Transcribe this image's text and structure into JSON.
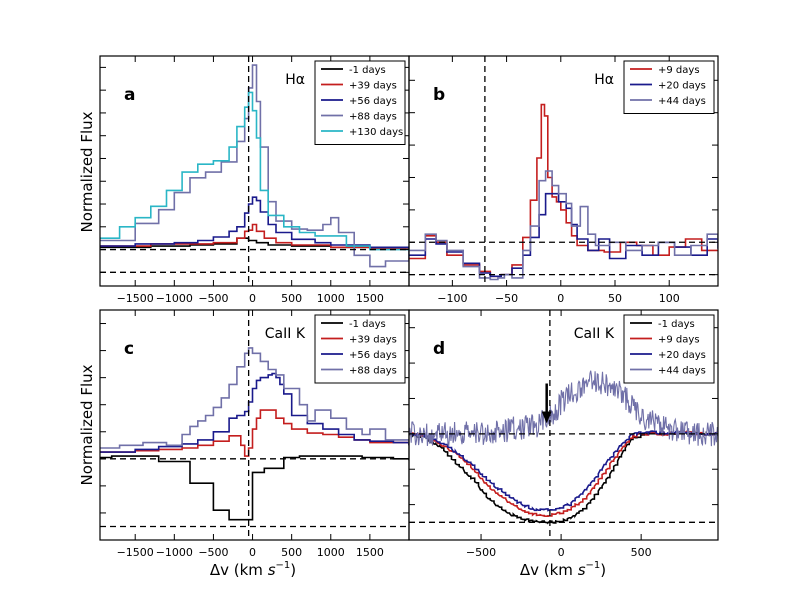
{
  "figure": {
    "ylabel": "Normalized Flux",
    "xlabel_main": "Δv (km ",
    "xlabel_unit": "s",
    "xlabel_exp": "−1",
    "xlabel_close": ")"
  },
  "chart_data": [
    {
      "type": "line",
      "panel": "a",
      "title": "Hα",
      "xlabel": "",
      "ylabel": "Normalized Flux",
      "xlim": [
        -1950,
        2000
      ],
      "ylim": [
        0.88,
        2.9
      ],
      "xticks": [
        -1500,
        -1000,
        -500,
        0,
        500,
        1000,
        1500
      ],
      "xticklabels": [
        "−1500",
        "−1000",
        "−500",
        "0",
        "500",
        "1000",
        "1500"
      ],
      "yticks": [
        1.0,
        1.2,
        1.4,
        1.6,
        1.8,
        2.0,
        2.2,
        2.4,
        2.6,
        2.8
      ],
      "vline": -50,
      "hlines": [
        1.0,
        1.2
      ],
      "legend_position": "top-right",
      "step": true,
      "series": [
        {
          "name": "-1 days",
          "color": "#000000",
          "x": [
            -1950,
            -1300,
            -800,
            -500,
            -200,
            -50,
            50,
            200,
            500,
            1000,
            1500,
            2000
          ],
          "y": [
            1.22,
            1.23,
            1.24,
            1.25,
            1.3,
            1.28,
            1.26,
            1.24,
            1.23,
            1.22,
            1.22,
            1.21
          ]
        },
        {
          "name": "+39 days",
          "color": "#c41e1e",
          "x": [
            -1950,
            -1300,
            -800,
            -500,
            -200,
            -100,
            -50,
            0,
            50,
            150,
            300,
            500,
            1000,
            1500,
            2000
          ],
          "y": [
            1.23,
            1.25,
            1.25,
            1.26,
            1.3,
            1.36,
            1.37,
            1.42,
            1.36,
            1.3,
            1.26,
            1.24,
            1.22,
            1.21,
            1.21
          ]
        },
        {
          "name": "+56 days",
          "color": "#1a1a8c",
          "x": [
            -1950,
            -1500,
            -1000,
            -700,
            -500,
            -300,
            -200,
            -100,
            -50,
            0,
            50,
            100,
            200,
            300,
            500,
            800,
            1000,
            1500,
            2000
          ],
          "y": [
            1.23,
            1.25,
            1.26,
            1.28,
            1.31,
            1.36,
            1.4,
            1.52,
            1.6,
            1.66,
            1.63,
            1.53,
            1.42,
            1.35,
            1.29,
            1.26,
            1.24,
            1.22,
            1.2
          ]
        },
        {
          "name": "+88 days",
          "color": "#7070a8",
          "x": [
            -1950,
            -1500,
            -1200,
            -1000,
            -800,
            -600,
            -400,
            -200,
            -100,
            -50,
            0,
            50,
            100,
            200,
            300,
            500,
            700,
            900,
            1000,
            1100,
            1300,
            1500,
            1700,
            2000
          ],
          "y": [
            1.28,
            1.43,
            1.55,
            1.7,
            1.83,
            1.88,
            1.97,
            2.15,
            2.35,
            2.62,
            2.82,
            2.5,
            2.1,
            1.62,
            1.45,
            1.38,
            1.37,
            1.42,
            1.48,
            1.35,
            1.15,
            1.05,
            1.1,
            1.2
          ]
        },
        {
          "name": "+130 days",
          "color": "#2ab6c6",
          "x": [
            -1950,
            -1700,
            -1500,
            -1300,
            -1100,
            -900,
            -700,
            -500,
            -300,
            -200,
            -100,
            -50,
            0,
            50,
            100,
            200,
            400,
            600,
            800,
            1000,
            1200,
            1500,
            2000
          ],
          "y": [
            1.3,
            1.4,
            1.48,
            1.58,
            1.72,
            1.88,
            1.95,
            1.98,
            2.1,
            2.28,
            2.45,
            2.58,
            2.42,
            2.18,
            1.72,
            1.5,
            1.4,
            1.35,
            1.32,
            1.32,
            1.23,
            1.2,
            1.21
          ]
        }
      ]
    },
    {
      "type": "line",
      "panel": "b",
      "title": "Hα",
      "xlabel": "",
      "ylabel": "",
      "xlim": [
        -140,
        145
      ],
      "ylim": [
        0.93,
        2.35
      ],
      "xticks": [
        -100,
        -50,
        0,
        50,
        100
      ],
      "xticklabels": [
        "−100",
        "−50",
        "0",
        "50",
        "100"
      ],
      "yticks": [
        1.0,
        1.2,
        1.4,
        1.6,
        1.8,
        2.0,
        2.2
      ],
      "vline": -70,
      "hlines": [
        1.0,
        1.2
      ],
      "legend_position": "top-right",
      "step": true,
      "series": [
        {
          "name": "+9 days",
          "color": "#c41e1e",
          "x": [
            -140,
            -125,
            -115,
            -105,
            -90,
            -75,
            -65,
            -55,
            -45,
            -35,
            -28,
            -22,
            -18,
            -15,
            -12,
            -8,
            -4,
            0,
            5,
            10,
            15,
            25,
            40,
            55,
            70,
            85,
            100,
            115,
            130,
            145
          ],
          "y": [
            1.1,
            1.24,
            1.2,
            1.12,
            1.06,
            1.02,
            0.99,
            1.0,
            1.06,
            1.23,
            1.46,
            1.72,
            2.05,
            1.98,
            1.6,
            1.48,
            1.45,
            1.4,
            1.32,
            1.24,
            1.18,
            1.15,
            1.14,
            1.2,
            1.18,
            1.12,
            1.17,
            1.22,
            1.15,
            1.15
          ]
        },
        {
          "name": "+20 days",
          "color": "#1a1a8c",
          "x": [
            -140,
            -125,
            -115,
            -105,
            -90,
            -75,
            -65,
            -55,
            -45,
            -35,
            -28,
            -20,
            -14,
            -8,
            -2,
            5,
            10,
            15,
            25,
            35,
            45,
            60,
            75,
            90,
            105,
            120,
            135,
            145
          ],
          "y": [
            1.12,
            1.22,
            1.19,
            1.14,
            1.07,
            1.01,
            0.99,
            1.0,
            1.04,
            1.12,
            1.23,
            1.37,
            1.5,
            1.5,
            1.45,
            1.41,
            1.31,
            1.22,
            1.15,
            1.22,
            1.1,
            1.18,
            1.12,
            1.2,
            1.17,
            1.12,
            1.22,
            1.16
          ]
        },
        {
          "name": "+44 days",
          "color": "#7070a8",
          "x": [
            -140,
            -125,
            -115,
            -105,
            -90,
            -75,
            -65,
            -58,
            -52,
            -45,
            -35,
            -28,
            -20,
            -14,
            -8,
            -2,
            5,
            10,
            18,
            25,
            32,
            45,
            60,
            75,
            90,
            105,
            120,
            135,
            145
          ],
          "y": [
            1.15,
            1.25,
            1.21,
            1.15,
            1.05,
            0.98,
            0.97,
            0.98,
            1.0,
            0.98,
            1.15,
            1.3,
            1.58,
            1.64,
            1.55,
            1.5,
            1.44,
            1.3,
            1.42,
            1.25,
            1.18,
            1.2,
            1.15,
            1.18,
            1.2,
            1.12,
            1.18,
            1.25,
            1.2
          ]
        }
      ]
    },
    {
      "type": "line",
      "panel": "c",
      "title": "CaII K",
      "xlabel": "Δv (km s−1)",
      "ylabel": "Normalized Flux",
      "xlim": [
        -1950,
        2000
      ],
      "ylim": [
        0.4,
        2.1
      ],
      "xticks": [
        -1500,
        -1000,
        -500,
        0,
        500,
        1000,
        1500
      ],
      "xticklabels": [
        "−1500",
        "−1000",
        "−500",
        "0",
        "500",
        "1000",
        "1500"
      ],
      "yticks": [
        0.6,
        0.8,
        1.0,
        1.2,
        1.4,
        1.6,
        1.8,
        2.0
      ],
      "vline": -50,
      "hlines": [
        0.5,
        1.0
      ],
      "legend_position": "top-right",
      "step": true,
      "series": [
        {
          "name": "-1 days",
          "color": "#000000",
          "x": [
            -1950,
            -1800,
            -1200,
            -800,
            -500,
            -300,
            -50,
            0,
            150,
            400,
            600,
            1000,
            1400,
            1800,
            2000
          ],
          "y": [
            1.01,
            1.02,
            0.98,
            0.82,
            0.62,
            0.55,
            0.55,
            0.9,
            0.93,
            1.01,
            1.02,
            1.02,
            1.01,
            1.0,
            0.99
          ]
        },
        {
          "name": "+39 days",
          "color": "#c41e1e",
          "x": [
            -1950,
            -1500,
            -1200,
            -900,
            -700,
            -500,
            -300,
            -150,
            -100,
            -50,
            0,
            50,
            100,
            200,
            300,
            400,
            500,
            700,
            900,
            1100,
            1300,
            1500,
            1800,
            2000
          ],
          "y": [
            1.05,
            1.06,
            1.07,
            1.08,
            1.1,
            1.13,
            1.17,
            1.1,
            1.02,
            1.08,
            1.22,
            1.3,
            1.36,
            1.36,
            1.3,
            1.26,
            1.22,
            1.19,
            1.18,
            1.16,
            1.14,
            1.12,
            1.12,
            1.1
          ]
        },
        {
          "name": "+56 days",
          "color": "#1a1a8c",
          "x": [
            -1950,
            -1500,
            -1200,
            -900,
            -700,
            -500,
            -300,
            -200,
            -100,
            -50,
            0,
            50,
            100,
            200,
            250,
            300,
            350,
            400,
            500,
            700,
            900,
            1100,
            1300,
            1500,
            1800,
            2000
          ],
          "y": [
            1.05,
            1.07,
            1.09,
            1.11,
            1.14,
            1.2,
            1.3,
            1.32,
            1.35,
            1.42,
            1.52,
            1.58,
            1.6,
            1.62,
            1.63,
            1.6,
            1.55,
            1.48,
            1.32,
            1.26,
            1.22,
            1.18,
            1.14,
            1.13,
            1.12,
            1.1
          ]
        },
        {
          "name": "+88 days",
          "color": "#7070a8",
          "x": [
            -1950,
            -1700,
            -1400,
            -1100,
            -900,
            -800,
            -700,
            -600,
            -500,
            -400,
            -300,
            -200,
            -100,
            -50,
            0,
            100,
            200,
            300,
            400,
            600,
            700,
            800,
            1000,
            1200,
            1400,
            1500,
            1700,
            2000
          ],
          "y": [
            1.08,
            1.1,
            1.12,
            1.1,
            1.18,
            1.24,
            1.28,
            1.32,
            1.38,
            1.45,
            1.55,
            1.68,
            1.78,
            1.82,
            1.78,
            1.72,
            1.66,
            1.62,
            1.52,
            1.4,
            1.28,
            1.36,
            1.3,
            1.22,
            1.18,
            1.22,
            1.14,
            1.1
          ]
        }
      ]
    },
    {
      "type": "line",
      "panel": "d",
      "title": "CaII K",
      "xlabel": "Δv (km s−1)",
      "ylabel": "",
      "xlim": [
        -950,
        980
      ],
      "ylim": [
        0.4,
        1.7
      ],
      "xticks": [
        -500,
        0,
        500
      ],
      "xticklabels": [
        "−500",
        "0",
        "500"
      ],
      "yticks": [
        0.6,
        0.8,
        1.0,
        1.2,
        1.4,
        1.6
      ],
      "vline": -70,
      "hlines": [
        0.5,
        1.0
      ],
      "arrow_x": -90,
      "legend_position": "top-right",
      "step": false,
      "series": [
        {
          "name": "-1 days",
          "color": "#000000",
          "x": [
            -950,
            -850,
            -750,
            -650,
            -550,
            -450,
            -350,
            -250,
            -150,
            -50,
            50,
            150,
            250,
            350,
            400,
            450,
            550,
            650,
            750,
            850,
            980
          ],
          "y": [
            1.0,
            0.98,
            0.92,
            0.83,
            0.74,
            0.63,
            0.56,
            0.52,
            0.5,
            0.5,
            0.52,
            0.58,
            0.7,
            0.84,
            0.92,
            0.98,
            1.0,
            1.0,
            1.0,
            1.0,
            1.0
          ]
        },
        {
          "name": "+9 days",
          "color": "#c41e1e",
          "x": [
            -950,
            -850,
            -750,
            -650,
            -550,
            -450,
            -350,
            -250,
            -150,
            -50,
            50,
            150,
            250,
            350,
            400,
            450,
            550,
            650,
            750,
            850,
            980
          ],
          "y": [
            1.0,
            0.99,
            0.94,
            0.88,
            0.8,
            0.7,
            0.63,
            0.57,
            0.54,
            0.54,
            0.57,
            0.64,
            0.76,
            0.88,
            0.94,
            0.99,
            1.0,
            1.0,
            1.01,
            1.0,
            1.0
          ]
        },
        {
          "name": "+20 days",
          "color": "#1a1a8c",
          "x": [
            -950,
            -850,
            -750,
            -650,
            -550,
            -450,
            -350,
            -250,
            -150,
            -50,
            50,
            150,
            250,
            350,
            400,
            450,
            550,
            650,
            750,
            850,
            980
          ],
          "y": [
            1.0,
            0.99,
            0.95,
            0.89,
            0.82,
            0.73,
            0.66,
            0.6,
            0.57,
            0.57,
            0.6,
            0.68,
            0.8,
            0.91,
            0.96,
            1.0,
            1.01,
            1.0,
            1.01,
            1.0,
            1.0
          ]
        },
        {
          "name": "+44 days",
          "color": "#7070a8",
          "x": [
            -950,
            -750,
            -550,
            -350,
            -150,
            -50,
            0,
            100,
            200,
            300,
            400,
            500,
            600,
            700,
            800,
            980
          ],
          "y": [
            1.0,
            1.0,
            1.0,
            1.02,
            1.05,
            1.1,
            1.18,
            1.25,
            1.3,
            1.28,
            1.2,
            1.1,
            1.05,
            1.02,
            1.0,
            1.0
          ],
          "noise_amplitude": 0.07
        }
      ]
    }
  ]
}
